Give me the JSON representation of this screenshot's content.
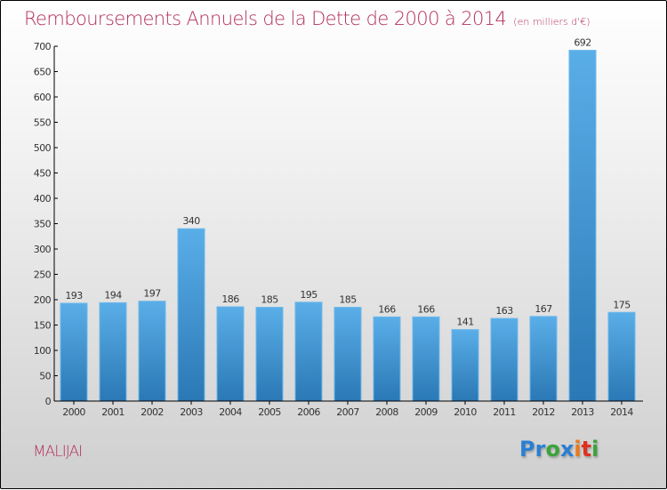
{
  "header": {
    "title": "Remboursements Annuels de la Dette de 2000 à 2014",
    "subtitle": "(en milliers d'€)"
  },
  "footer": {
    "commune": "MALIJAI",
    "logo": {
      "letters": [
        "P",
        "r",
        "o",
        "x",
        "i",
        "t",
        "i"
      ],
      "colors": [
        "#2a7fd4",
        "#2a7fd4",
        "#3aa33a",
        "#2a7fd4",
        "#e87a1a",
        "#e0301e",
        "#3aa33a"
      ]
    }
  },
  "chart_data": {
    "type": "bar",
    "title": "Remboursements Annuels de la Dette de 2000 à 2014",
    "subtitle": "(en milliers d'€)",
    "xlabel": "",
    "ylabel": "",
    "categories": [
      "2000",
      "2001",
      "2002",
      "2003",
      "2004",
      "2005",
      "2006",
      "2007",
      "2008",
      "2009",
      "2010",
      "2011",
      "2012",
      "2013",
      "2014"
    ],
    "values": [
      193,
      194,
      197,
      340,
      186,
      185,
      195,
      185,
      166,
      166,
      141,
      163,
      167,
      692,
      175
    ],
    "ylim": [
      0,
      700
    ],
    "yticks": [
      0,
      50,
      100,
      150,
      200,
      250,
      300,
      350,
      400,
      450,
      500,
      550,
      600,
      650,
      700
    ],
    "grid": false,
    "legend": "none",
    "bar_color_top": "#5aaee8",
    "bar_color_bottom": "#2a78b5"
  }
}
